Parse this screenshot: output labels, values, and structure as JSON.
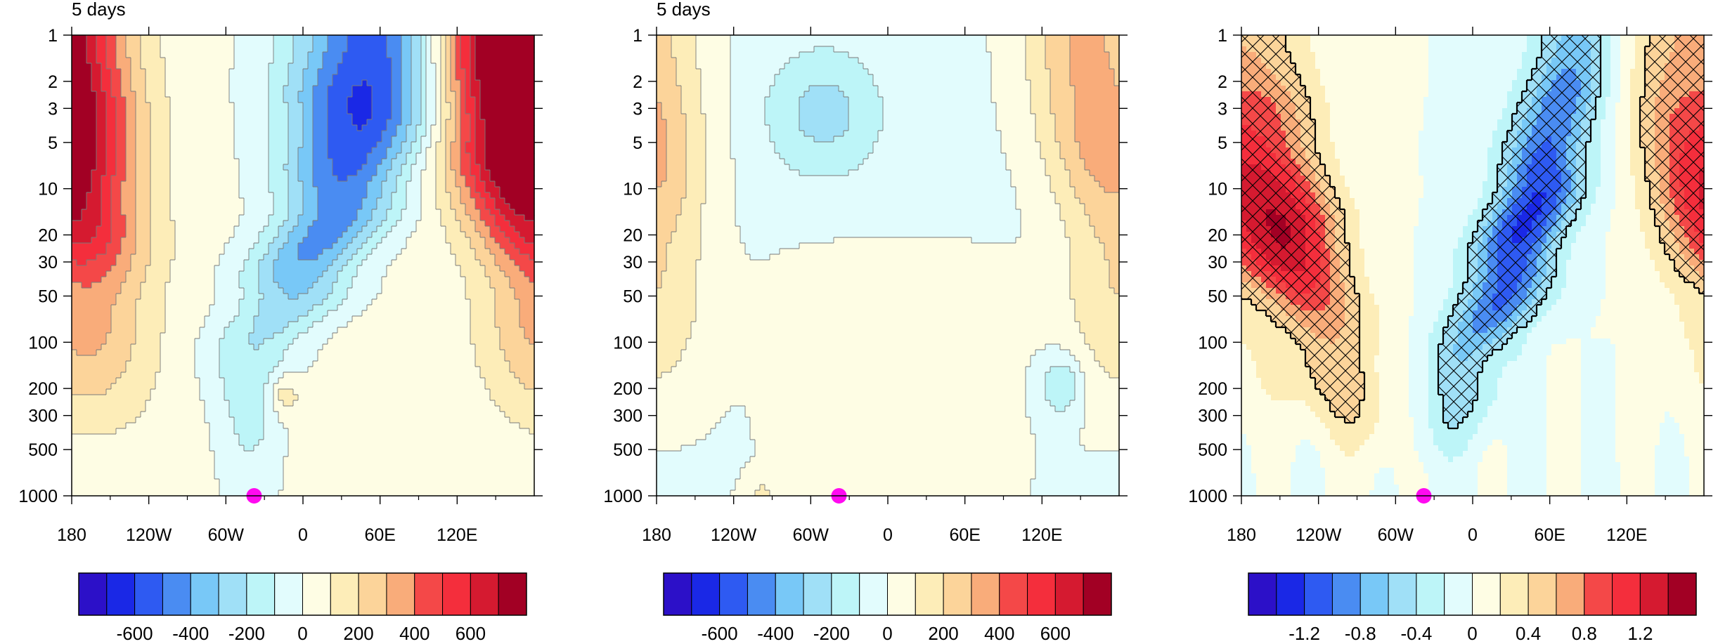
{
  "figure": {
    "palette": [
      "#2C10C8",
      "#1A28E6",
      "#2E5AF2",
      "#4A8CF2",
      "#78C8F7",
      "#A0E0F7",
      "#BDF5F8",
      "#E2FCFD",
      "#FEFDE4",
      "#FDEDB8",
      "#FCD49A",
      "#F9AC7A",
      "#F44848",
      "#F42E3C",
      "#D51A30",
      "#A20024"
    ],
    "marker_color": "#FF0AF0",
    "hatch_color": "#000000"
  },
  "chart_data": [
    {
      "type": "heatmap",
      "title": "5 days",
      "xlabel": "",
      "ylabel": "",
      "x_range": [
        -180,
        180
      ],
      "y_range": [
        1000,
        1
      ],
      "y_scale": "log",
      "x_ticks": [
        "180",
        "120W",
        "60W",
        "0",
        "60E",
        "120E"
      ],
      "y_ticks": [
        "1",
        "2",
        "3",
        "5",
        "10",
        "20",
        "30",
        "50",
        "100",
        "200",
        "300",
        "500",
        "1000"
      ],
      "colorbar_labels": [
        "-600",
        "-400",
        "-200",
        "0",
        "200",
        "400",
        "600"
      ],
      "contour_levels": [
        -700,
        -600,
        -500,
        -400,
        -300,
        -200,
        -100,
        0,
        100,
        200,
        300,
        400,
        500,
        600,
        700
      ],
      "marker": {
        "lon": -38,
        "pressure": 1000
      }
    },
    {
      "type": "heatmap",
      "title": "5 days",
      "xlabel": "",
      "ylabel": "",
      "x_range": [
        -180,
        180
      ],
      "y_range": [
        1000,
        1
      ],
      "y_scale": "log",
      "x_ticks": [
        "180",
        "120W",
        "60W",
        "0",
        "60E",
        "120E"
      ],
      "y_ticks": [
        "1",
        "2",
        "3",
        "5",
        "10",
        "20",
        "30",
        "50",
        "100",
        "200",
        "300",
        "500",
        "1000"
      ],
      "colorbar_labels": [
        "-600",
        "-400",
        "-200",
        "0",
        "200",
        "400",
        "600"
      ],
      "contour_levels": [
        -700,
        -600,
        -500,
        -400,
        -300,
        -200,
        -100,
        0,
        100,
        200,
        300,
        400,
        500,
        600,
        700
      ],
      "marker": {
        "lon": -38,
        "pressure": 1000
      }
    },
    {
      "type": "heatmap",
      "title": "",
      "xlabel": "",
      "ylabel": "",
      "x_range": [
        -180,
        180
      ],
      "y_range": [
        1000,
        1
      ],
      "y_scale": "log",
      "x_ticks": [
        "180",
        "120W",
        "60W",
        "0",
        "60E",
        "120E"
      ],
      "y_ticks": [
        "1",
        "2",
        "3",
        "5",
        "10",
        "20",
        "30",
        "50",
        "100",
        "200",
        "300",
        "500",
        "1000"
      ],
      "colorbar_labels": [
        "-1.2",
        "-0.8",
        "-0.4",
        "0",
        "0.4",
        "0.8",
        "1.2"
      ],
      "contour_levels": [
        -1.4,
        -1.2,
        -1.0,
        -0.8,
        -0.6,
        -0.4,
        -0.2,
        0,
        0.2,
        0.4,
        0.6,
        0.8,
        1.0,
        1.2,
        1.4
      ],
      "hatched": "significant regions",
      "marker": {
        "lon": -38,
        "pressure": 1000
      }
    }
  ]
}
